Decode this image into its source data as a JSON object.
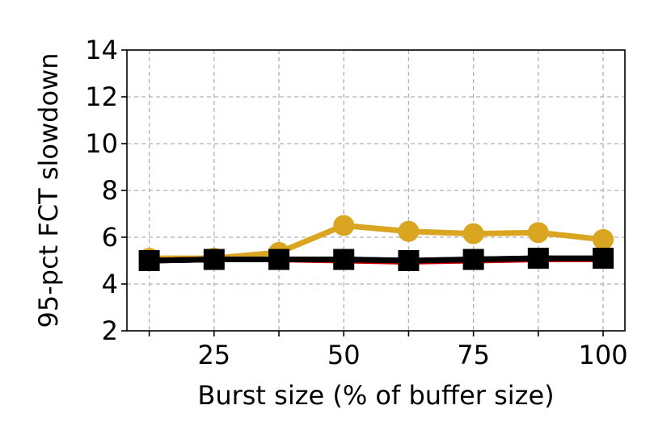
{
  "chart_data": {
    "type": "line",
    "x_label": "Burst size (% of buffer size)",
    "y_label": "95-pct FCT slowdown",
    "x": [
      12.5,
      25,
      37.5,
      50,
      62.5,
      75,
      87.5,
      100
    ],
    "xlim": [
      8.2,
      104.2
    ],
    "xticks": [
      25,
      50,
      75,
      100
    ],
    "xminorticks": [
      12.5,
      37.5,
      62.5,
      87.5
    ],
    "ylim": [
      2,
      14
    ],
    "yticks": [
      2,
      4,
      6,
      8,
      10,
      12,
      14
    ],
    "grid": true,
    "series": [
      {
        "color": "#daa520",
        "marker": "circle",
        "values": [
          5.1,
          5.1,
          5.35,
          6.5,
          6.25,
          6.15,
          6.2,
          5.9
        ]
      },
      {
        "color": "#0000cc",
        "marker": "none",
        "values": [
          5.0,
          5.05,
          5.05,
          5.05,
          5.0,
          5.05,
          5.1,
          5.05
        ]
      },
      {
        "color": "#cc0000",
        "marker": "none",
        "values": [
          5.0,
          5.05,
          5.05,
          5.0,
          4.95,
          5.0,
          5.05,
          5.05
        ]
      },
      {
        "color": "#000000",
        "marker": "square",
        "values": [
          5.0,
          5.05,
          5.05,
          5.05,
          5.0,
          5.05,
          5.1,
          5.1
        ]
      }
    ]
  }
}
